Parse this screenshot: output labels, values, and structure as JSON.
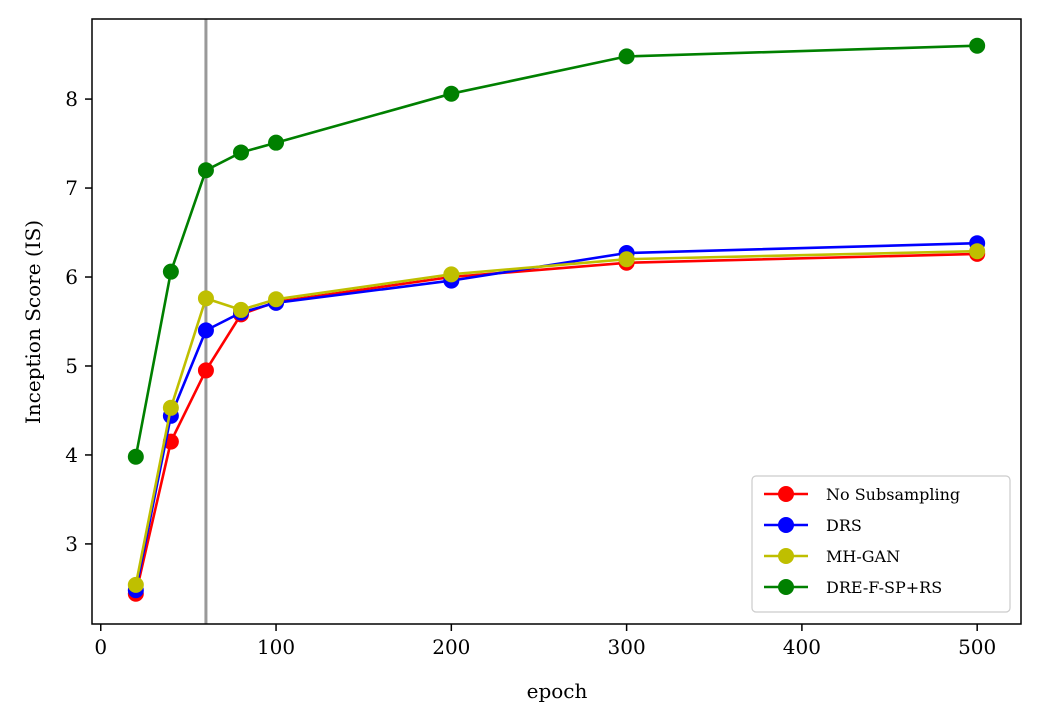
{
  "chart_data": {
    "type": "line",
    "title": "",
    "xlabel": "epoch",
    "ylabel": "Inception Score (IS)",
    "xlim": [
      -5,
      525
    ],
    "ylim": [
      2.1,
      8.9
    ],
    "xticks": [
      0,
      100,
      200,
      300,
      400,
      500
    ],
    "yticks": [
      3,
      4,
      5,
      6,
      7,
      8
    ],
    "grid": false,
    "legend_position": "bottom-right",
    "reference_line": {
      "x": 60,
      "color": "#999999"
    },
    "x": [
      20,
      40,
      60,
      80,
      100,
      200,
      300,
      500
    ],
    "series": [
      {
        "name": "No Subsampling",
        "color": "#ff0000",
        "values": [
          2.44,
          4.15,
          4.95,
          5.58,
          5.72,
          6.0,
          6.16,
          6.26
        ]
      },
      {
        "name": "DRS",
        "color": "#0000ff",
        "values": [
          2.48,
          4.44,
          5.4,
          5.6,
          5.71,
          5.96,
          6.27,
          6.38
        ]
      },
      {
        "name": "MH-GAN",
        "color": "#bfbf00",
        "values": [
          2.54,
          4.53,
          5.76,
          5.63,
          5.75,
          6.03,
          6.2,
          6.29
        ]
      },
      {
        "name": "DRE-F-SP+RS",
        "color": "#008000",
        "values": [
          3.98,
          6.06,
          7.2,
          7.4,
          7.51,
          8.06,
          8.48,
          8.6
        ]
      }
    ]
  }
}
